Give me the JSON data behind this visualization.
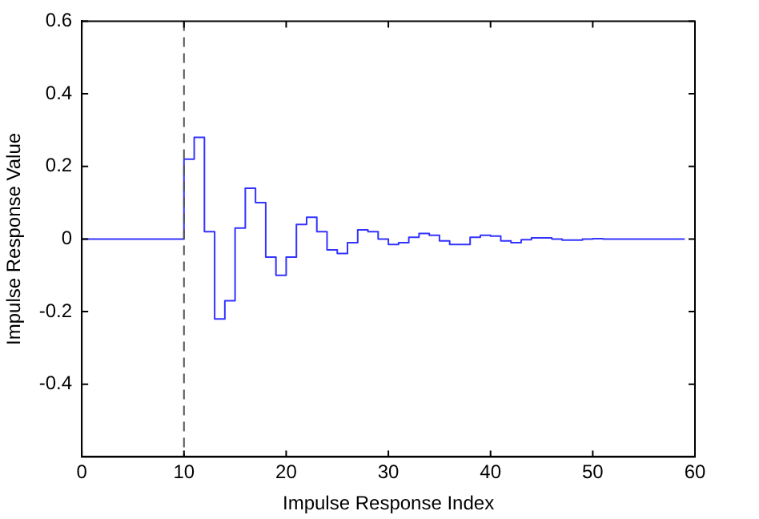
{
  "chart_data": {
    "type": "step",
    "xlabel": "Impulse Response Index",
    "ylabel": "Impulse Response Value",
    "x": [
      0,
      1,
      2,
      3,
      4,
      5,
      6,
      7,
      8,
      9,
      10,
      11,
      12,
      13,
      14,
      15,
      16,
      17,
      18,
      19,
      20,
      21,
      22,
      23,
      24,
      25,
      26,
      27,
      28,
      29,
      30,
      31,
      32,
      33,
      34,
      35,
      36,
      37,
      38,
      39,
      40,
      41,
      42,
      43,
      44,
      45,
      46,
      47,
      48,
      49,
      50,
      51,
      52,
      53,
      54,
      55,
      56,
      57,
      58,
      59
    ],
    "series": [
      {
        "color": "#3333ff",
        "values": [
          0,
          0,
          0,
          0,
          0,
          0,
          0,
          0,
          0,
          0,
          0.22,
          0.28,
          0.02,
          -0.22,
          -0.17,
          0.03,
          0.14,
          0.1,
          -0.05,
          -0.1,
          -0.05,
          0.04,
          0.06,
          0.02,
          -0.03,
          -0.04,
          -0.01,
          0.025,
          0.02,
          0,
          -0.015,
          -0.01,
          0.005,
          0.015,
          0.01,
          -0.005,
          -0.015,
          -0.015,
          0.005,
          0.01,
          0.008,
          -0.005,
          -0.01,
          -0.002,
          0.003,
          0.003,
          0,
          -0.003,
          -0.003,
          0,
          0.001,
          0,
          0,
          0,
          0,
          0,
          0,
          0,
          0,
          0
        ]
      }
    ],
    "xlim": [
      0,
      60
    ],
    "xticks": [
      0,
      10,
      20,
      30,
      40,
      50,
      60
    ],
    "ylim": [
      -0.6,
      0.6
    ],
    "yticks": [
      -0.4,
      -0.2,
      0,
      0.2,
      0.4,
      0.6
    ],
    "ref_lines": [
      {
        "axis": "x",
        "value": 10,
        "color": "#555555",
        "line_style": "dashed"
      }
    ],
    "grid": false,
    "legend": false,
    "marker": "none",
    "line_style": "solid"
  }
}
